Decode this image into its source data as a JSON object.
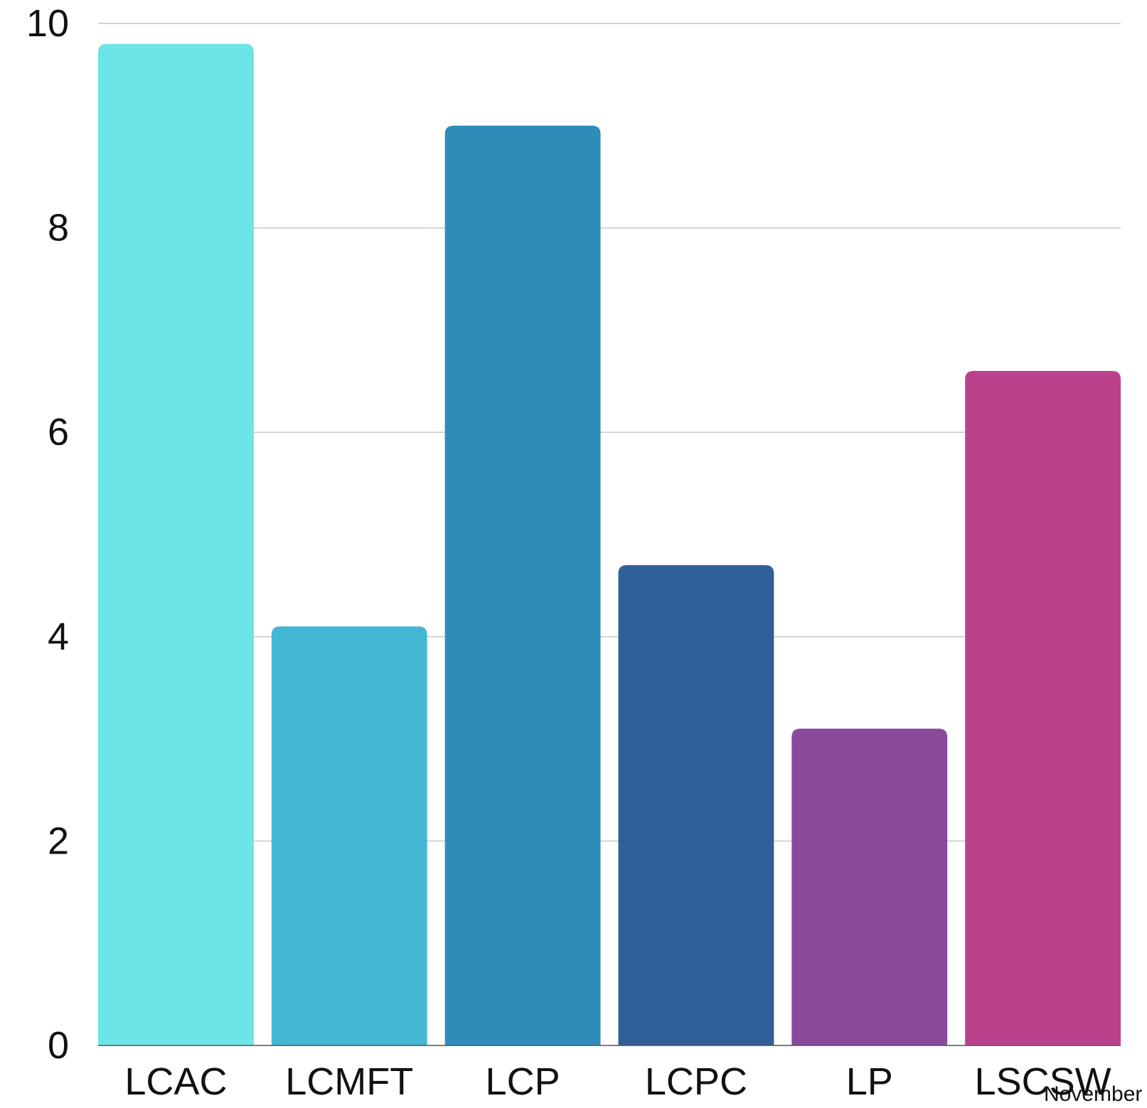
{
  "chart_data": {
    "type": "bar",
    "title": "",
    "xlabel": "",
    "ylabel": "",
    "categories": [
      "LCAC",
      "LCMFT",
      "LCP",
      "LCPC",
      "LP",
      "LSCSW"
    ],
    "values": [
      9.8,
      4.1,
      9.0,
      4.7,
      3.1,
      6.6
    ],
    "colors": [
      "#6de4e8",
      "#43b6d6",
      "#2e8cb8",
      "#2f6098",
      "#8a4a9c",
      "#bc418c"
    ],
    "ylim": [
      0,
      10
    ],
    "yticks": [
      0,
      2,
      4,
      6,
      8,
      10
    ],
    "ytick_labels": [
      "0",
      "2",
      "4",
      "6",
      "8",
      "10"
    ],
    "grid": true,
    "legend": "none",
    "footer_note": "November"
  }
}
